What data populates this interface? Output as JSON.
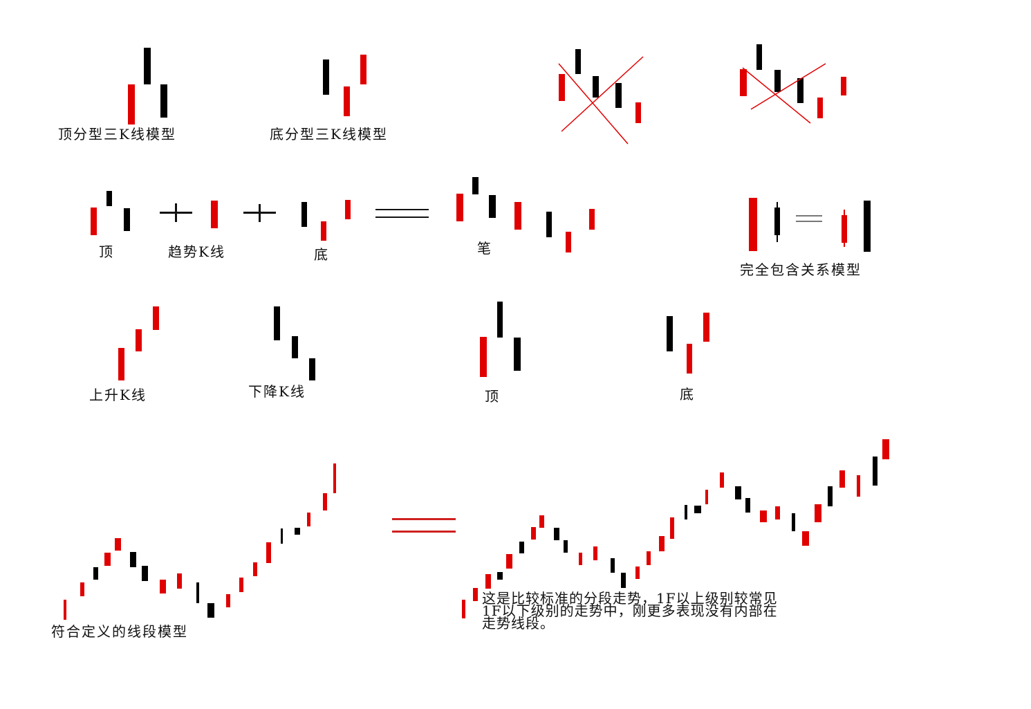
{
  "colors": {
    "up_candle": "#e00000",
    "down_candle": "#000000",
    "cross_line": "#e00000",
    "equals_bars": "#d02020",
    "text": "#111111"
  },
  "labels": {
    "top_fractal_model": "顶分型三K线模型",
    "bottom_fractal_model": "底分型三K线模型",
    "top": "顶",
    "trend_k_line": "趋势K线",
    "bottom": "底",
    "stroke": "笔",
    "full_containment_model": "完全包含关系模型",
    "rising_k_line": "上升K线",
    "falling_k_line": "下降K线",
    "top_2": "顶",
    "bottom_2": "底",
    "segment_model": "符合定义的线段模型"
  },
  "description": {
    "line1": "这是比较标准的分段走势，1F以上级别较常见",
    "line2": "1F以下级别的走势中，刚更多表现没有内部在",
    "line3": "走势线段。"
  },
  "operators": {
    "plus": "+",
    "equals": "="
  }
}
